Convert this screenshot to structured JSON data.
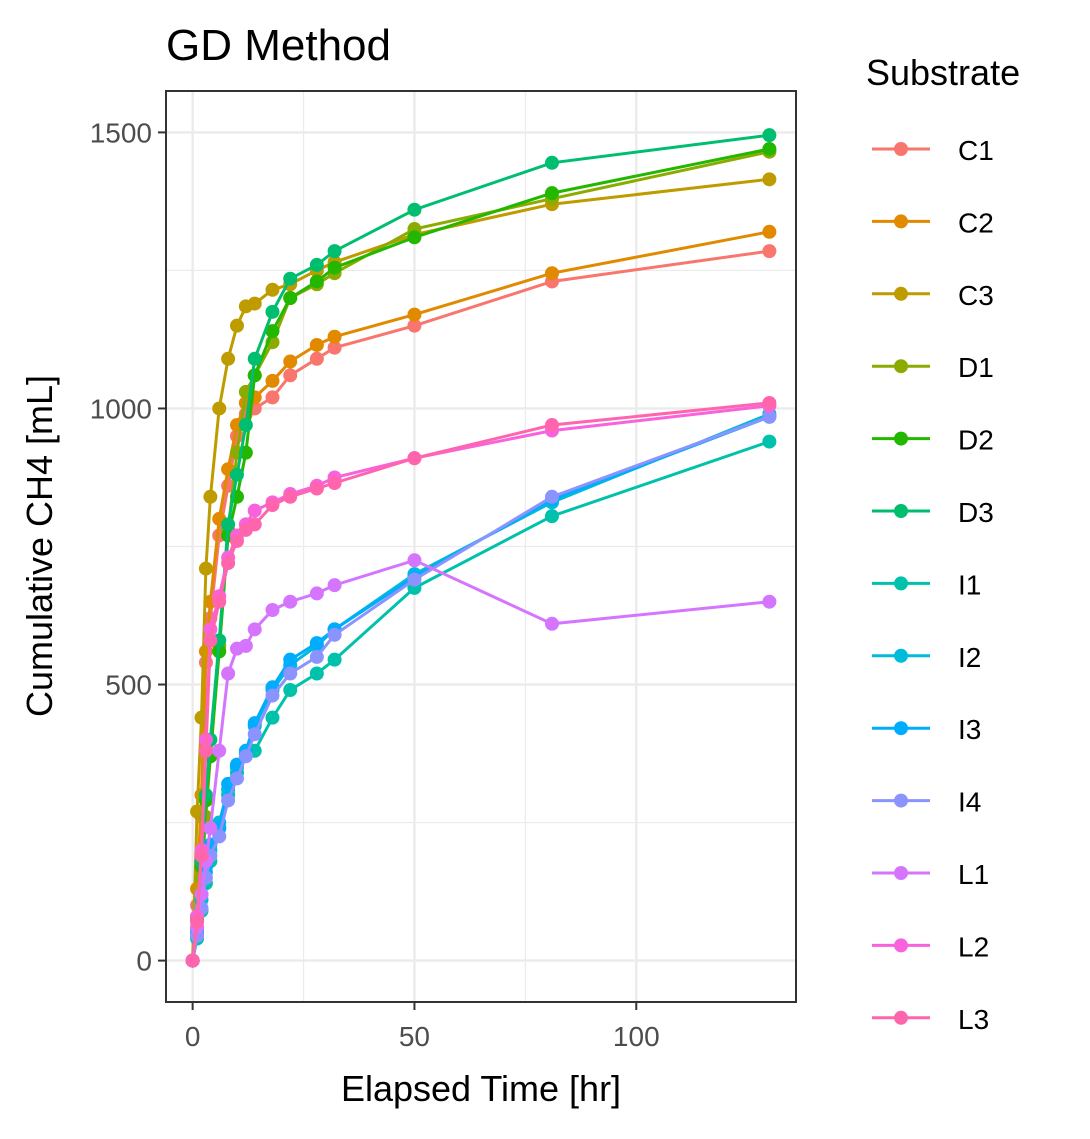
{
  "chart_data": {
    "type": "line",
    "title": "GD Method",
    "xlabel": "Elapsed Time [hr]",
    "ylabel": "Cumulative CH4 [mL]",
    "xlim": [
      -6,
      136
    ],
    "ylim": [
      -75,
      1575
    ],
    "x_ticks": [
      0,
      50,
      100
    ],
    "y_ticks": [
      0,
      500,
      1000,
      1500
    ],
    "grid": true,
    "legend_title": "Substrate",
    "legend_position": "right",
    "series": [
      {
        "name": "C1",
        "color": "#F8766D",
        "x": [
          0,
          1,
          2,
          3,
          4,
          6,
          8,
          10,
          12,
          14,
          18,
          22,
          28,
          32,
          50,
          81,
          130
        ],
        "y": [
          0,
          100,
          260,
          540,
          620,
          770,
          860,
          950,
          990,
          1000,
          1020,
          1060,
          1090,
          1110,
          1150,
          1230,
          1285
        ]
      },
      {
        "name": "C2",
        "color": "#E18A00",
        "x": [
          0,
          1,
          2,
          3,
          4,
          6,
          8,
          10,
          12,
          14,
          18,
          22,
          28,
          32,
          50,
          81,
          130
        ],
        "y": [
          0,
          130,
          300,
          560,
          650,
          800,
          890,
          970,
          1010,
          1020,
          1050,
          1085,
          1115,
          1130,
          1170,
          1245,
          1320
        ]
      },
      {
        "name": "C3",
        "color": "#BE9C00",
        "x": [
          0,
          1,
          2,
          3,
          4,
          6,
          8,
          10,
          12,
          14,
          18,
          22,
          28,
          32,
          50,
          81,
          130
        ],
        "y": [
          0,
          270,
          440,
          710,
          840,
          1000,
          1090,
          1150,
          1185,
          1190,
          1215,
          1225,
          1250,
          1265,
          1315,
          1370,
          1415
        ]
      },
      {
        "name": "D1",
        "color": "#8CAB00",
        "x": [
          0,
          1,
          2,
          3,
          4,
          6,
          8,
          10,
          12,
          14,
          18,
          22,
          28,
          32,
          50,
          81,
          130
        ],
        "y": [
          0,
          60,
          150,
          260,
          370,
          570,
          780,
          920,
          1030,
          1060,
          1120,
          1200,
          1225,
          1245,
          1325,
          1380,
          1465
        ]
      },
      {
        "name": "D2",
        "color": "#24B700",
        "x": [
          0,
          1,
          2,
          3,
          4,
          6,
          8,
          10,
          12,
          14,
          18,
          22,
          28,
          32,
          50,
          81,
          130
        ],
        "y": [
          0,
          75,
          170,
          290,
          370,
          560,
          770,
          840,
          920,
          1060,
          1140,
          1200,
          1230,
          1255,
          1310,
          1390,
          1470
        ]
      },
      {
        "name": "D3",
        "color": "#00BE70",
        "x": [
          0,
          1,
          2,
          3,
          4,
          6,
          8,
          10,
          12,
          14,
          18,
          22,
          28,
          32,
          50,
          81,
          130
        ],
        "y": [
          0,
          80,
          180,
          300,
          400,
          580,
          790,
          880,
          970,
          1090,
          1175,
          1235,
          1260,
          1285,
          1360,
          1445,
          1495
        ]
      },
      {
        "name": "I1",
        "color": "#00C1AB",
        "x": [
          0,
          1,
          2,
          3,
          4,
          6,
          8,
          10,
          12,
          14,
          18,
          22,
          28,
          32,
          50,
          81,
          130
        ],
        "y": [
          0,
          40,
          90,
          140,
          180,
          240,
          300,
          340,
          375,
          380,
          440,
          490,
          520,
          545,
          675,
          805,
          940
        ]
      },
      {
        "name": "I2",
        "color": "#00BBDA",
        "x": [
          0,
          1,
          2,
          3,
          4,
          6,
          8,
          10,
          12,
          14,
          18,
          22,
          28,
          32,
          50,
          81,
          130
        ],
        "y": [
          0,
          50,
          110,
          160,
          200,
          250,
          310,
          350,
          375,
          425,
          490,
          535,
          570,
          600,
          700,
          830,
          990
        ]
      },
      {
        "name": "I3",
        "color": "#00ACFC",
        "x": [
          0,
          1,
          2,
          3,
          4,
          6,
          8,
          10,
          12,
          14,
          18,
          22,
          28,
          32,
          50,
          81,
          130
        ],
        "y": [
          0,
          55,
          120,
          170,
          210,
          240,
          320,
          355,
          380,
          430,
          495,
          545,
          575,
          600,
          695,
          835,
          985
        ]
      },
      {
        "name": "I4",
        "color": "#8B93FF",
        "x": [
          0,
          1,
          2,
          3,
          4,
          6,
          8,
          10,
          12,
          14,
          18,
          22,
          28,
          32,
          50,
          81,
          130
        ],
        "y": [
          0,
          45,
          95,
          150,
          190,
          225,
          290,
          330,
          370,
          410,
          480,
          520,
          550,
          590,
          690,
          840,
          985
        ]
      },
      {
        "name": "L1",
        "color": "#D575FE",
        "x": [
          0,
          1,
          2,
          3,
          4,
          6,
          8,
          10,
          12,
          14,
          18,
          22,
          28,
          32,
          50,
          81,
          130
        ],
        "y": [
          0,
          60,
          120,
          180,
          240,
          380,
          520,
          565,
          570,
          600,
          635,
          650,
          665,
          680,
          725,
          610,
          650
        ]
      },
      {
        "name": "L2",
        "color": "#F962DD",
        "x": [
          0,
          1,
          2,
          3,
          4,
          6,
          8,
          10,
          12,
          14,
          18,
          22,
          28,
          32,
          50,
          81,
          130
        ],
        "y": [
          0,
          80,
          200,
          400,
          600,
          660,
          730,
          770,
          790,
          815,
          830,
          845,
          860,
          875,
          910,
          960,
          1005
        ]
      },
      {
        "name": "L3",
        "color": "#FF65AC",
        "x": [
          0,
          1,
          2,
          3,
          4,
          6,
          8,
          10,
          12,
          14,
          18,
          22,
          28,
          32,
          50,
          81,
          130
        ],
        "y": [
          0,
          70,
          190,
          380,
          580,
          650,
          720,
          760,
          780,
          790,
          825,
          840,
          855,
          865,
          910,
          970,
          1010
        ]
      }
    ]
  }
}
